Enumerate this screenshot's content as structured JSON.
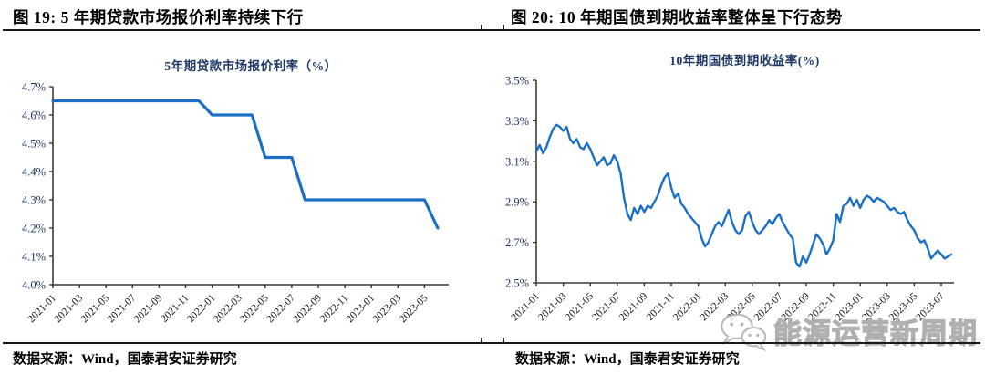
{
  "figures": [
    {
      "heading": "图 19: 5 年期贷款市场报价利率持续下行",
      "chart_title": "5年期贷款市场报价利率（%）",
      "source": "数据来源：Wind，国泰君安证券研究"
    },
    {
      "heading": "图 20: 10 年期国债到期收益率整体呈下行态势",
      "chart_title": "10年期国债到期收益率(%)",
      "source": "数据来源：Wind，国泰君安证券研究"
    }
  ],
  "watermark": {
    "icon": "wechat-icon",
    "text": "能源运营新周期"
  },
  "colors": {
    "line": "#1B6FC5",
    "chart_title": "#1F3864",
    "y_label": "#1F3864",
    "x_label": "#1a1a1a",
    "axis": "#3a3a3a",
    "watermark": "#9d9d9d"
  },
  "chart_data": [
    {
      "type": "line",
      "title": "5年期贷款市场报价利率（%）",
      "xlabel": "",
      "ylabel": "",
      "grid": false,
      "legend": "none",
      "ylim": [
        4.0,
        4.7
      ],
      "y_ticks": [
        4.0,
        4.1,
        4.2,
        4.3,
        4.4,
        4.5,
        4.6,
        4.7
      ],
      "y_tick_labels": [
        "4.0%",
        "4.1%",
        "4.2%",
        "4.3%",
        "4.4%",
        "4.5%",
        "4.6%",
        "4.7%"
      ],
      "x_tick_labels": [
        "2021-01",
        "2021-03",
        "2021-05",
        "2021-07",
        "2021-09",
        "2021-11",
        "2022-01",
        "2022-03",
        "2022-05",
        "2022-07",
        "2022-09",
        "2022-11",
        "2023-01",
        "2023-03",
        "2023-05"
      ],
      "x_start": "2021-01",
      "x_end": "2023-06",
      "frequency": "monthly",
      "series": [
        {
          "name": "5年期贷款市场报价利率",
          "values": [
            4.65,
            4.65,
            4.65,
            4.65,
            4.65,
            4.65,
            4.65,
            4.65,
            4.65,
            4.65,
            4.65,
            4.65,
            4.6,
            4.6,
            4.6,
            4.6,
            4.45,
            4.45,
            4.45,
            4.3,
            4.3,
            4.3,
            4.3,
            4.3,
            4.3,
            4.3,
            4.3,
            4.3,
            4.3,
            4.2
          ]
        }
      ]
    },
    {
      "type": "line",
      "title": "10年期国债到期收益率(%)",
      "xlabel": "",
      "ylabel": "",
      "grid": false,
      "legend": "none",
      "ylim": [
        2.5,
        3.5
      ],
      "y_ticks": [
        2.5,
        2.7,
        2.9,
        3.1,
        3.3,
        3.5
      ],
      "y_tick_labels": [
        "2.5%",
        "2.7%",
        "2.9%",
        "3.1%",
        "3.3%",
        "3.5%"
      ],
      "x_tick_labels": [
        "2021-01",
        "2021-03",
        "2021-05",
        "2021-07",
        "2021-09",
        "2021-11",
        "2022-01",
        "2022-03",
        "2022-05",
        "2022-07",
        "2022-09",
        "2022-11",
        "2023-01",
        "2023-03",
        "2023-05",
        "2023-07"
      ],
      "x_start": "2021-01",
      "x_end": "2023-07",
      "frequency": "4 samples per month",
      "series": [
        {
          "name": "10年期国债到期收益率",
          "values": [
            3.15,
            3.18,
            3.14,
            3.17,
            3.22,
            3.26,
            3.28,
            3.27,
            3.25,
            3.27,
            3.21,
            3.19,
            3.21,
            3.17,
            3.16,
            3.19,
            3.16,
            3.12,
            3.08,
            3.1,
            3.12,
            3.08,
            3.09,
            3.13,
            3.1,
            3.04,
            2.92,
            2.84,
            2.81,
            2.87,
            2.84,
            2.88,
            2.85,
            2.88,
            2.87,
            2.9,
            2.93,
            2.98,
            3.02,
            3.04,
            2.97,
            2.92,
            2.94,
            2.89,
            2.87,
            2.84,
            2.82,
            2.8,
            2.78,
            2.72,
            2.68,
            2.7,
            2.74,
            2.78,
            2.8,
            2.78,
            2.82,
            2.86,
            2.8,
            2.76,
            2.74,
            2.76,
            2.83,
            2.85,
            2.8,
            2.76,
            2.74,
            2.76,
            2.78,
            2.81,
            2.79,
            2.82,
            2.84,
            2.8,
            2.77,
            2.74,
            2.72,
            2.6,
            2.58,
            2.63,
            2.6,
            2.64,
            2.69,
            2.74,
            2.72,
            2.69,
            2.64,
            2.67,
            2.71,
            2.84,
            2.8,
            2.88,
            2.89,
            2.92,
            2.88,
            2.91,
            2.87,
            2.91,
            2.93,
            2.92,
            2.9,
            2.92,
            2.91,
            2.9,
            2.88,
            2.86,
            2.87,
            2.85,
            2.84,
            2.85,
            2.81,
            2.78,
            2.76,
            2.72,
            2.7,
            2.71,
            2.67,
            2.62,
            2.64,
            2.66,
            2.64,
            2.62,
            2.63,
            2.64
          ]
        }
      ]
    }
  ]
}
